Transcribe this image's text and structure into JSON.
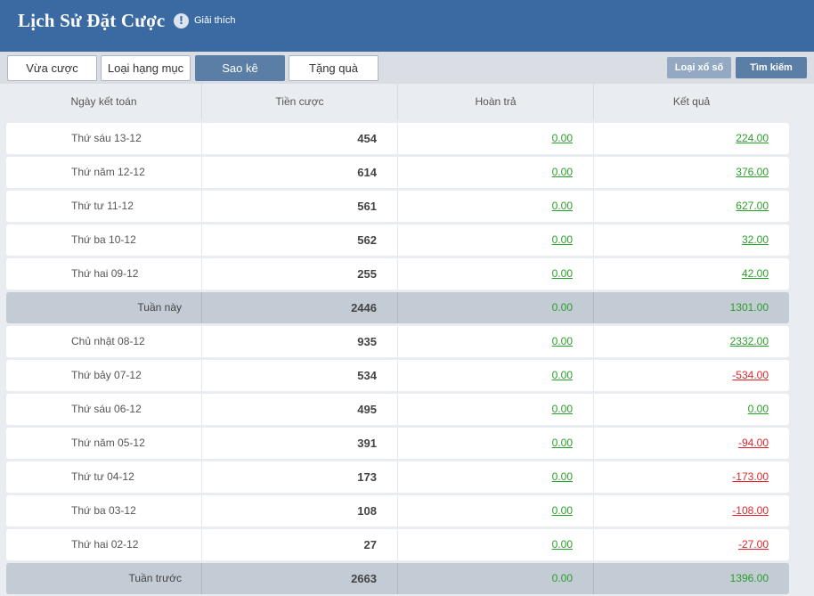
{
  "header": {
    "title": "Lịch Sử Đặt Cược",
    "info_icon": "!",
    "info_text": "Giải thích"
  },
  "tabs": [
    "Vừa cược",
    "Loại hạng mục",
    "Sao kê",
    "Tặng quà"
  ],
  "active_tab": "Sao kê",
  "actions": {
    "lottery_type": "Loại xổ số",
    "search": "Tìm kiếm"
  },
  "columns": [
    "Ngày kết toán",
    "Tiền cược",
    "Hoàn trả",
    "Kết quả"
  ],
  "rows": [
    {
      "type": "day",
      "date": "Thứ sáu 13-12",
      "bet": "454",
      "refund": "0.00",
      "result": "224.00",
      "sign": "pos"
    },
    {
      "type": "day",
      "date": "Thứ năm 12-12",
      "bet": "614",
      "refund": "0.00",
      "result": "376.00",
      "sign": "pos"
    },
    {
      "type": "day",
      "date": "Thứ tư 11-12",
      "bet": "561",
      "refund": "0.00",
      "result": "627.00",
      "sign": "pos"
    },
    {
      "type": "day",
      "date": "Thứ ba 10-12",
      "bet": "562",
      "refund": "0.00",
      "result": "32.00",
      "sign": "pos"
    },
    {
      "type": "day",
      "date": "Thứ hai 09-12",
      "bet": "255",
      "refund": "0.00",
      "result": "42.00",
      "sign": "pos"
    },
    {
      "type": "summary",
      "date": "Tuần này",
      "bet": "2446",
      "refund": "0.00",
      "result": "1301.00",
      "sign": "pos"
    },
    {
      "type": "day",
      "date": "Chủ nhật 08-12",
      "bet": "935",
      "refund": "0.00",
      "result": "2332.00",
      "sign": "pos"
    },
    {
      "type": "day",
      "date": "Thứ bảy 07-12",
      "bet": "534",
      "refund": "0.00",
      "result": "-534.00",
      "sign": "neg"
    },
    {
      "type": "day",
      "date": "Thứ sáu 06-12",
      "bet": "495",
      "refund": "0.00",
      "result": "0.00",
      "sign": "pos"
    },
    {
      "type": "day",
      "date": "Thứ năm 05-12",
      "bet": "391",
      "refund": "0.00",
      "result": "-94.00",
      "sign": "neg"
    },
    {
      "type": "day",
      "date": "Thứ tư 04-12",
      "bet": "173",
      "refund": "0.00",
      "result": "-173.00",
      "sign": "neg"
    },
    {
      "type": "day",
      "date": "Thứ ba 03-12",
      "bet": "108",
      "refund": "0.00",
      "result": "-108.00",
      "sign": "neg"
    },
    {
      "type": "day",
      "date": "Thứ hai 02-12",
      "bet": "27",
      "refund": "0.00",
      "result": "-27.00",
      "sign": "neg"
    },
    {
      "type": "summary",
      "date": "Tuần trước",
      "bet": "2663",
      "refund": "0.00",
      "result": "1396.00",
      "sign": "pos"
    }
  ],
  "colors": {
    "header": "#3b6aa3",
    "active_tab": "#5b7ea6",
    "positive": "#2aa02a",
    "negative": "#e0262c",
    "summary_row": "#c3cbd4"
  }
}
